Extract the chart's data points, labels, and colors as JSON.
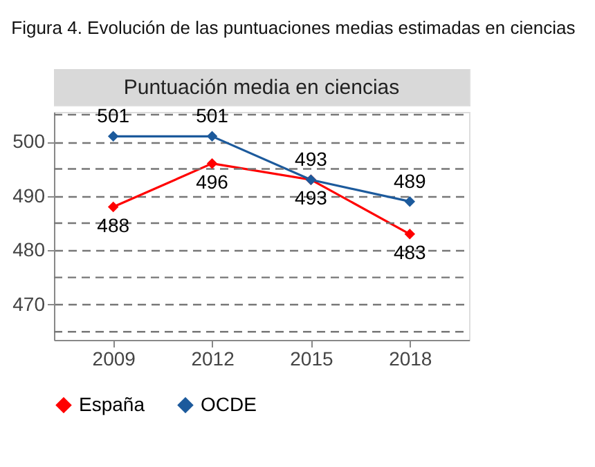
{
  "chart_data": {
    "type": "line",
    "title": "Figura 4. Evolución de las puntuaciones medias estimadas en ciencias",
    "subtitle": "Puntuación media en ciencias",
    "categories": [
      "2009",
      "2012",
      "2015",
      "2018"
    ],
    "series": [
      {
        "name": "España",
        "color": "#ff0000",
        "values": [
          488,
          496,
          493,
          483
        ]
      },
      {
        "name": "OCDE",
        "color": "#1c5a9c",
        "values": [
          501,
          501,
          493,
          489
        ]
      }
    ],
    "ylim": [
      463.5,
      505.5
    ],
    "yticks": [
      {
        "value": 465,
        "label": null
      },
      470,
      {
        "value": 475,
        "label": null
      },
      480,
      {
        "value": 485,
        "label": null
      },
      490,
      {
        "value": 495,
        "label": null
      },
      500,
      {
        "value": 505,
        "label": null
      }
    ],
    "grid": "y",
    "legend": "bottom",
    "marker": "diamond",
    "line_style": "solid",
    "data_labels": true
  }
}
